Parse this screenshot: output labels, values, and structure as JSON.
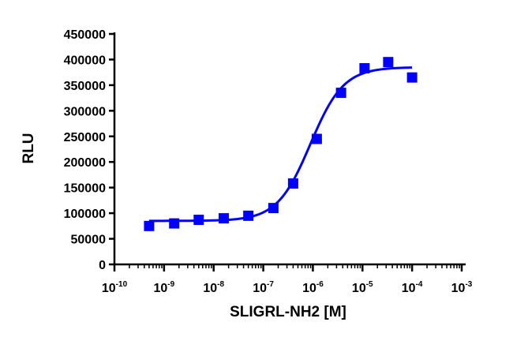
{
  "chart_data": {
    "type": "scatter",
    "xlabel": "SLIGRL-NH2 [M]",
    "ylabel": "RLU",
    "x_scale": "log",
    "x_range": [
      1e-10,
      0.001
    ],
    "x_ticks": [
      {
        "base": "10",
        "exp": "-10"
      },
      {
        "base": "10",
        "exp": "-9"
      },
      {
        "base": "10",
        "exp": "-8"
      },
      {
        "base": "10",
        "exp": "-7"
      },
      {
        "base": "10",
        "exp": "-6"
      },
      {
        "base": "10",
        "exp": "-5"
      },
      {
        "base": "10",
        "exp": "-4"
      },
      {
        "base": "10",
        "exp": "-3"
      }
    ],
    "y_range": [
      0,
      450000
    ],
    "y_ticks": [
      "0",
      "50000",
      "100000",
      "150000",
      "200000",
      "250000",
      "300000",
      "350000",
      "400000",
      "450000"
    ],
    "grid": false,
    "color": "#0000ff",
    "series": [
      {
        "points": [
          {
            "x": 5e-10,
            "y": 75000
          },
          {
            "x": 1.6e-09,
            "y": 80000
          },
          {
            "x": 5e-09,
            "y": 87000
          },
          {
            "x": 1.6e-08,
            "y": 90000
          },
          {
            "x": 5e-08,
            "y": 95000
          },
          {
            "x": 1.6e-07,
            "y": 110000
          },
          {
            "x": 4e-07,
            "y": 158000
          },
          {
            "x": 1.2e-06,
            "y": 245000
          },
          {
            "x": 3.7e-06,
            "y": 335000
          },
          {
            "x": 1.1e-05,
            "y": 383000
          },
          {
            "x": 3.3e-05,
            "y": 395000
          },
          {
            "x": 0.0001,
            "y": 365000
          }
        ],
        "fit": {
          "bottom": 85000,
          "top": 385000,
          "log_ec50": -6.05,
          "hill": 1.3,
          "x_from": 5e-10,
          "x_to": 0.0001
        }
      }
    ]
  }
}
